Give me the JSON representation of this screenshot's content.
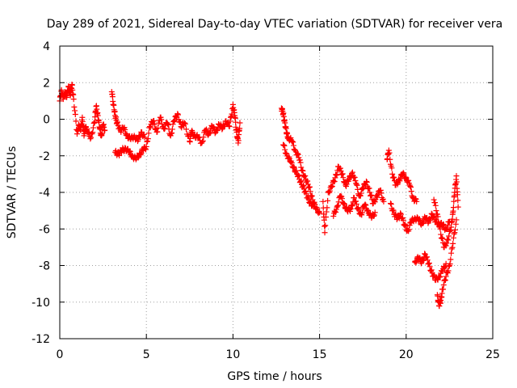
{
  "chart_data": {
    "type": "scatter",
    "title": "Day 289 of 2021, Sidereal Day-to-day VTEC variation (SDTVAR) for receiver vera",
    "xlabel": "GPS time / hours",
    "ylabel": "SDTVAR / TECUs",
    "xlim": [
      0,
      25
    ],
    "ylim": [
      -12,
      4
    ],
    "xticks": [
      0,
      5,
      10,
      15,
      20,
      25
    ],
    "xtick_labels": [
      "0",
      "5",
      "10",
      "15",
      "20",
      "25"
    ],
    "yticks": [
      -12,
      -10,
      -8,
      -6,
      -4,
      -2,
      0,
      2,
      4
    ],
    "ytick_labels": [
      "-12",
      "-10",
      "-8",
      "-6",
      "-4",
      "-2",
      "0",
      "2",
      "4"
    ],
    "grid": true,
    "marker": "+",
    "marker_color": "#ff0000",
    "series": [
      {
        "name": "SDTVAR",
        "points": [
          [
            0.0,
            1.0
          ],
          [
            0.1,
            1.6
          ],
          [
            0.2,
            1.1
          ],
          [
            0.3,
            1.5
          ],
          [
            0.4,
            1.2
          ],
          [
            0.5,
            1.8
          ],
          [
            0.6,
            1.3
          ],
          [
            0.7,
            1.9
          ],
          [
            0.8,
            1.1
          ],
          [
            1.0,
            -0.8
          ],
          [
            1.1,
            -0.3
          ],
          [
            1.2,
            -0.6
          ],
          [
            1.3,
            0.1
          ],
          [
            1.4,
            -0.9
          ],
          [
            1.5,
            -0.4
          ],
          [
            1.6,
            -0.7
          ],
          [
            1.8,
            -1.0
          ],
          [
            2.0,
            -0.2
          ],
          [
            2.1,
            0.7
          ],
          [
            2.2,
            0.2
          ],
          [
            2.3,
            -0.5
          ],
          [
            2.4,
            -0.9
          ],
          [
            2.5,
            -0.3
          ],
          [
            2.6,
            -0.6
          ],
          [
            3.0,
            1.5
          ],
          [
            3.1,
            0.8
          ],
          [
            3.2,
            0.2
          ],
          [
            3.3,
            -0.2
          ],
          [
            3.5,
            -0.6
          ],
          [
            3.7,
            -0.5
          ],
          [
            3.9,
            -0.9
          ],
          [
            4.1,
            -1.1
          ],
          [
            4.3,
            -0.9
          ],
          [
            4.5,
            -1.2
          ],
          [
            4.7,
            -0.7
          ],
          [
            4.9,
            -1.0
          ],
          [
            3.2,
            -1.8
          ],
          [
            3.4,
            -1.9
          ],
          [
            3.6,
            -1.7
          ],
          [
            3.8,
            -1.6
          ],
          [
            4.0,
            -1.8
          ],
          [
            4.2,
            -2.0
          ],
          [
            4.4,
            -2.2
          ],
          [
            4.6,
            -1.9
          ],
          [
            4.8,
            -1.7
          ],
          [
            5.0,
            -1.5
          ],
          [
            5.2,
            -0.4
          ],
          [
            5.4,
            -0.1
          ],
          [
            5.6,
            -0.7
          ],
          [
            5.8,
            0.1
          ],
          [
            6.0,
            -0.5
          ],
          [
            6.2,
            -0.2
          ],
          [
            6.4,
            -0.9
          ],
          [
            6.6,
            -0.1
          ],
          [
            6.8,
            0.3
          ],
          [
            7.0,
            -0.4
          ],
          [
            7.2,
            -0.2
          ],
          [
            7.5,
            -1.2
          ],
          [
            7.6,
            -0.7
          ],
          [
            7.8,
            -0.9
          ],
          [
            8.0,
            -1.0
          ],
          [
            8.2,
            -1.3
          ],
          [
            8.4,
            -0.6
          ],
          [
            8.6,
            -0.8
          ],
          [
            8.8,
            -0.4
          ],
          [
            9.0,
            -0.7
          ],
          [
            9.2,
            -0.3
          ],
          [
            9.4,
            -0.5
          ],
          [
            9.6,
            -0.1
          ],
          [
            9.8,
            -0.4
          ],
          [
            10.0,
            0.8
          ],
          [
            10.1,
            0.2
          ],
          [
            10.2,
            -0.6
          ],
          [
            10.3,
            -1.3
          ],
          [
            10.4,
            -0.2
          ],
          [
            12.8,
            0.6
          ],
          [
            12.9,
            0.3
          ],
          [
            13.0,
            -0.2
          ],
          [
            13.1,
            -0.8
          ],
          [
            13.2,
            -1.0
          ],
          [
            13.4,
            -1.2
          ],
          [
            13.6,
            -1.7
          ],
          [
            13.8,
            -2.1
          ],
          [
            14.0,
            -2.8
          ],
          [
            14.2,
            -3.3
          ],
          [
            14.4,
            -3.7
          ],
          [
            14.6,
            -4.4
          ],
          [
            14.8,
            -4.9
          ],
          [
            15.0,
            -5.1
          ],
          [
            12.9,
            -1.4
          ],
          [
            13.1,
            -1.9
          ],
          [
            13.3,
            -2.3
          ],
          [
            13.5,
            -2.6
          ],
          [
            13.7,
            -3.0
          ],
          [
            13.9,
            -3.4
          ],
          [
            14.1,
            -3.8
          ],
          [
            14.3,
            -4.3
          ],
          [
            14.5,
            -4.6
          ],
          [
            14.7,
            -4.8
          ],
          [
            15.2,
            -4.5
          ],
          [
            15.3,
            -6.2
          ],
          [
            15.5,
            -4.0
          ],
          [
            15.7,
            -3.7
          ],
          [
            15.9,
            -3.2
          ],
          [
            16.1,
            -2.6
          ],
          [
            16.3,
            -3.0
          ],
          [
            16.5,
            -3.6
          ],
          [
            16.7,
            -3.3
          ],
          [
            16.9,
            -2.9
          ],
          [
            17.1,
            -3.5
          ],
          [
            17.3,
            -4.2
          ],
          [
            17.5,
            -3.8
          ],
          [
            17.7,
            -3.4
          ],
          [
            17.9,
            -4.0
          ],
          [
            18.1,
            -4.6
          ],
          [
            18.3,
            -4.2
          ],
          [
            18.5,
            -3.9
          ],
          [
            18.7,
            -4.5
          ],
          [
            15.8,
            -5.3
          ],
          [
            16.0,
            -4.8
          ],
          [
            16.2,
            -4.2
          ],
          [
            16.4,
            -4.6
          ],
          [
            16.6,
            -5.0
          ],
          [
            16.8,
            -4.9
          ],
          [
            17.0,
            -4.3
          ],
          [
            17.2,
            -4.9
          ],
          [
            17.4,
            -5.2
          ],
          [
            17.6,
            -4.7
          ],
          [
            17.8,
            -5.0
          ],
          [
            18.0,
            -5.4
          ],
          [
            18.2,
            -5.1
          ],
          [
            18.9,
            -2.2
          ],
          [
            19.0,
            -1.7
          ],
          [
            19.2,
            -3.0
          ],
          [
            19.4,
            -3.6
          ],
          [
            19.6,
            -3.3
          ],
          [
            19.8,
            -3.0
          ],
          [
            20.0,
            -3.2
          ],
          [
            20.2,
            -3.6
          ],
          [
            20.4,
            -4.3
          ],
          [
            20.6,
            -4.5
          ],
          [
            19.1,
            -4.6
          ],
          [
            19.3,
            -5.2
          ],
          [
            19.5,
            -5.4
          ],
          [
            19.7,
            -5.2
          ],
          [
            19.9,
            -5.8
          ],
          [
            20.1,
            -6.1
          ],
          [
            20.3,
            -5.6
          ],
          [
            20.5,
            -5.4
          ],
          [
            20.7,
            -5.5
          ],
          [
            20.9,
            -5.7
          ],
          [
            21.1,
            -5.4
          ],
          [
            21.3,
            -5.6
          ],
          [
            21.5,
            -5.2
          ],
          [
            21.7,
            -5.6
          ],
          [
            21.9,
            -5.7
          ],
          [
            22.1,
            -5.8
          ],
          [
            22.3,
            -6.0
          ],
          [
            22.5,
            -5.6
          ],
          [
            20.5,
            -7.8
          ],
          [
            20.7,
            -7.6
          ],
          [
            20.9,
            -7.8
          ],
          [
            21.1,
            -7.4
          ],
          [
            21.3,
            -7.9
          ],
          [
            21.5,
            -8.4
          ],
          [
            21.7,
            -8.8
          ],
          [
            21.9,
            -8.6
          ],
          [
            22.1,
            -8.3
          ],
          [
            22.3,
            -7.9
          ],
          [
            21.6,
            -4.4
          ],
          [
            21.8,
            -5.2
          ],
          [
            22.0,
            -6.3
          ],
          [
            22.2,
            -7.0
          ],
          [
            22.4,
            -6.6
          ],
          [
            22.6,
            -5.9
          ],
          [
            22.7,
            -5.1
          ],
          [
            22.8,
            -4.0
          ],
          [
            22.9,
            -3.1
          ],
          [
            23.0,
            -4.8
          ],
          [
            21.8,
            -9.6
          ],
          [
            21.9,
            -10.2
          ],
          [
            22.0,
            -9.9
          ],
          [
            22.1,
            -9.3
          ],
          [
            22.3,
            -8.6
          ],
          [
            22.5,
            -8.0
          ],
          [
            22.7,
            -6.8
          ],
          [
            22.9,
            -5.5
          ]
        ]
      }
    ]
  }
}
